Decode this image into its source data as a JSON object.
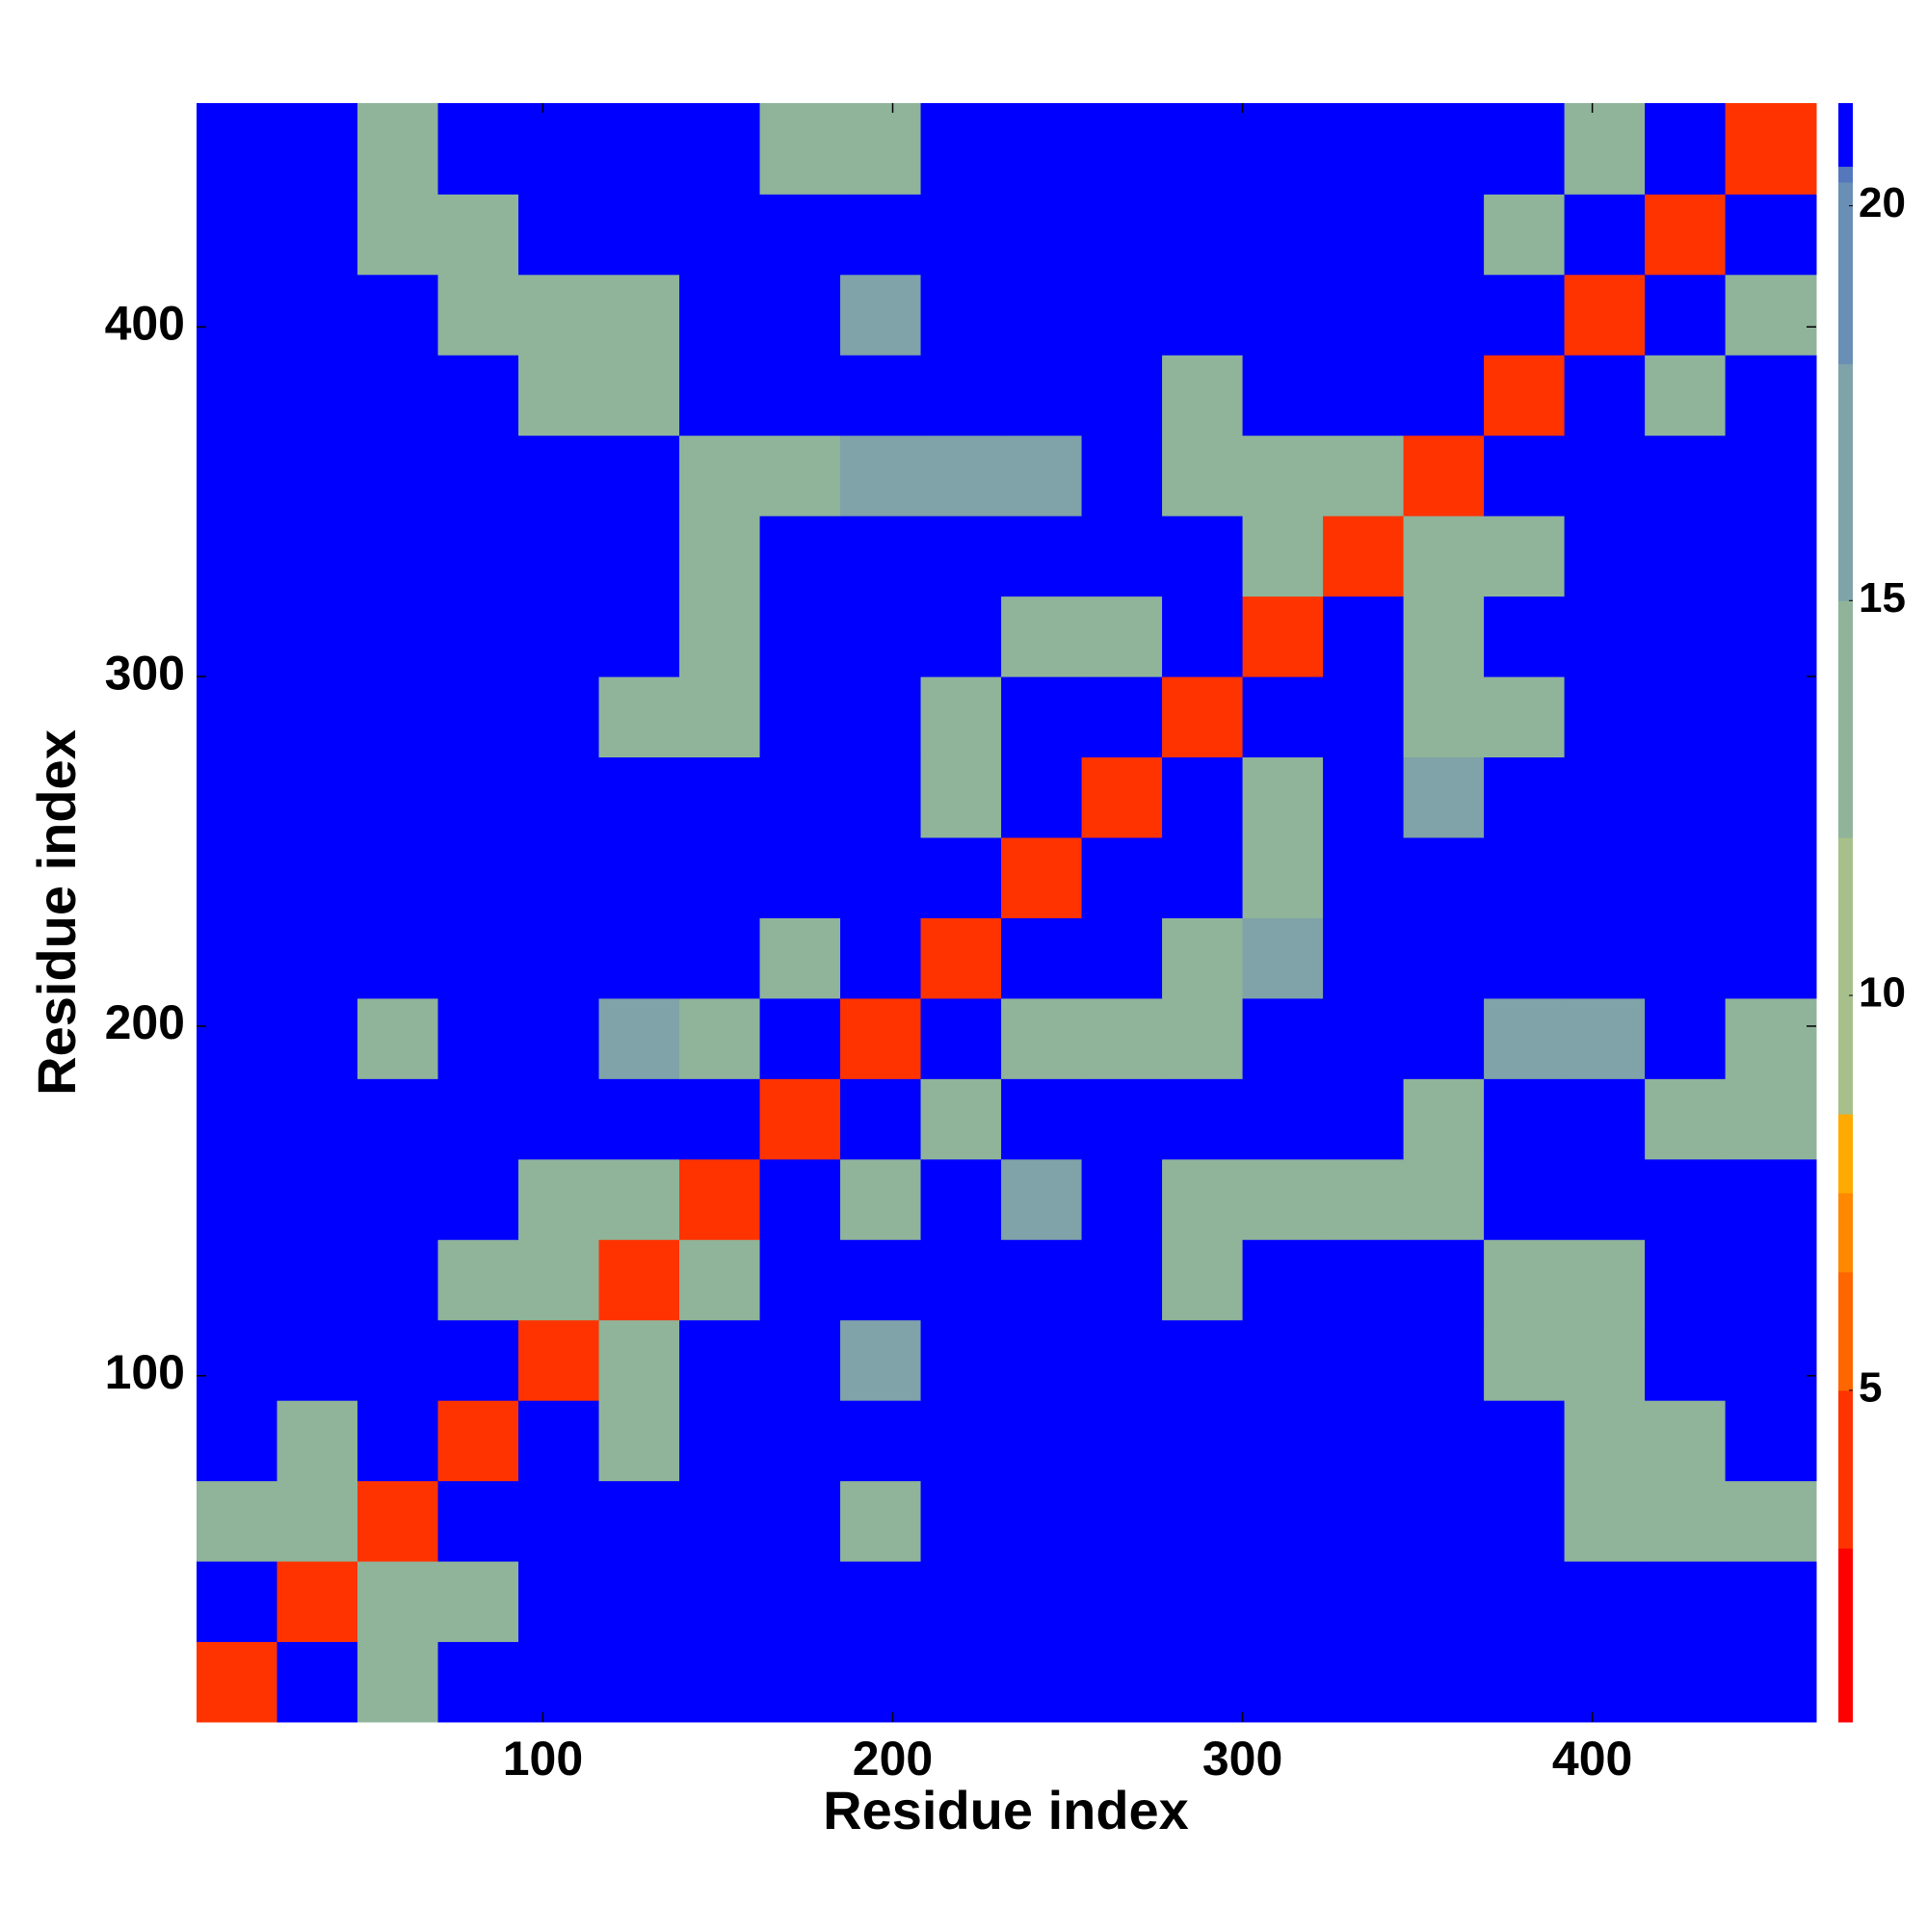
{
  "chart_data": {
    "type": "heatmap",
    "x_label": "Residue index",
    "y_label": "Residue index",
    "xlim": [
      1,
      464
    ],
    "ylim": [
      1,
      464
    ],
    "xticks": [
      100,
      200,
      300,
      400
    ],
    "yticks": [
      100,
      200,
      300,
      400
    ],
    "x_edges": [
      1,
      24,
      47,
      70,
      93,
      116,
      139,
      162,
      185,
      208,
      231,
      254,
      277,
      300,
      323,
      346,
      369,
      392,
      415,
      438,
      464
    ],
    "y_edges": [
      1,
      24,
      47,
      70,
      93,
      116,
      139,
      162,
      185,
      208,
      231,
      254,
      277,
      300,
      323,
      346,
      369,
      392,
      415,
      438,
      464
    ],
    "z": [
      [
        4,
        21,
        12,
        21,
        21,
        21,
        21,
        21,
        21,
        21,
        21,
        21,
        21,
        21,
        21,
        21,
        21,
        21,
        21,
        21
      ],
      [
        21,
        4,
        12,
        12,
        21,
        21,
        21,
        21,
        21,
        21,
        21,
        21,
        21,
        21,
        21,
        21,
        21,
        21,
        21,
        21
      ],
      [
        12,
        12,
        4,
        21,
        21,
        21,
        21,
        21,
        12,
        21,
        21,
        21,
        21,
        21,
        21,
        21,
        21,
        12,
        12,
        12
      ],
      [
        21,
        12,
        21,
        4,
        21,
        12,
        21,
        21,
        21,
        21,
        21,
        21,
        21,
        21,
        21,
        21,
        21,
        12,
        12,
        21
      ],
      [
        21,
        21,
        21,
        21,
        4,
        12,
        21,
        21,
        17,
        21,
        21,
        21,
        21,
        21,
        21,
        21,
        12,
        12,
        21,
        21
      ],
      [
        21,
        21,
        21,
        12,
        12,
        4,
        12,
        21,
        21,
        21,
        21,
        21,
        12,
        21,
        21,
        21,
        12,
        12,
        21,
        21
      ],
      [
        21,
        21,
        21,
        21,
        12,
        12,
        4,
        21,
        12,
        21,
        17,
        21,
        12,
        12,
        12,
        12,
        21,
        21,
        21,
        21
      ],
      [
        21,
        21,
        21,
        21,
        21,
        21,
        21,
        4,
        21,
        12,
        21,
        21,
        21,
        21,
        21,
        12,
        21,
        21,
        12,
        12
      ],
      [
        21,
        21,
        12,
        21,
        21,
        17,
        12,
        21,
        4,
        21,
        12,
        12,
        12,
        21,
        21,
        21,
        17,
        17,
        21,
        12
      ],
      [
        21,
        21,
        21,
        21,
        21,
        21,
        21,
        12,
        21,
        4,
        21,
        21,
        12,
        17,
        21,
        21,
        21,
        21,
        21,
        21
      ],
      [
        21,
        21,
        21,
        21,
        21,
        21,
        21,
        21,
        21,
        21,
        4,
        21,
        21,
        12,
        21,
        21,
        21,
        21,
        21,
        21
      ],
      [
        21,
        21,
        21,
        21,
        21,
        21,
        21,
        21,
        21,
        12,
        21,
        4,
        21,
        12,
        21,
        17,
        21,
        21,
        21,
        21
      ],
      [
        21,
        21,
        21,
        21,
        21,
        12,
        12,
        21,
        21,
        12,
        21,
        21,
        4,
        21,
        21,
        12,
        12,
        21,
        21,
        21
      ],
      [
        21,
        21,
        21,
        21,
        21,
        21,
        12,
        21,
        21,
        21,
        12,
        12,
        21,
        4,
        21,
        12,
        21,
        21,
        21,
        21
      ],
      [
        21,
        21,
        21,
        21,
        21,
        21,
        12,
        21,
        21,
        21,
        21,
        21,
        21,
        12,
        4,
        12,
        12,
        21,
        21,
        21
      ],
      [
        21,
        21,
        21,
        21,
        21,
        21,
        12,
        12,
        17,
        17,
        17,
        21,
        12,
        12,
        12,
        4,
        21,
        21,
        21,
        21
      ],
      [
        21,
        21,
        21,
        21,
        12,
        12,
        21,
        21,
        21,
        21,
        21,
        21,
        12,
        21,
        21,
        21,
        4,
        21,
        12,
        21
      ],
      [
        21,
        21,
        21,
        12,
        12,
        12,
        21,
        21,
        17,
        21,
        21,
        21,
        21,
        21,
        21,
        21,
        21,
        4,
        21,
        12
      ],
      [
        21,
        21,
        12,
        12,
        21,
        21,
        21,
        21,
        21,
        21,
        21,
        21,
        21,
        21,
        21,
        21,
        12,
        21,
        4,
        21
      ],
      [
        21,
        21,
        12,
        21,
        21,
        21,
        21,
        12,
        12,
        21,
        21,
        21,
        21,
        21,
        21,
        21,
        21,
        12,
        21,
        4
      ]
    ],
    "clim": [
      0.8,
      21.3
    ],
    "cticks": [
      5,
      10,
      15,
      20
    ],
    "colorscale": [
      [
        0.8,
        "#ff0000"
      ],
      [
        3,
        "#ff3300"
      ],
      [
        5,
        "#ff6600"
      ],
      [
        6.5,
        "#ff8800"
      ],
      [
        7.5,
        "#ffaa00"
      ],
      [
        8.5,
        "#a7bf8a"
      ],
      [
        12,
        "#8fb49a"
      ],
      [
        15,
        "#7fa3a8"
      ],
      [
        18,
        "#6a8fb5"
      ],
      [
        20.3,
        "#5577bb"
      ],
      [
        20.5,
        "#0000ff"
      ]
    ]
  }
}
